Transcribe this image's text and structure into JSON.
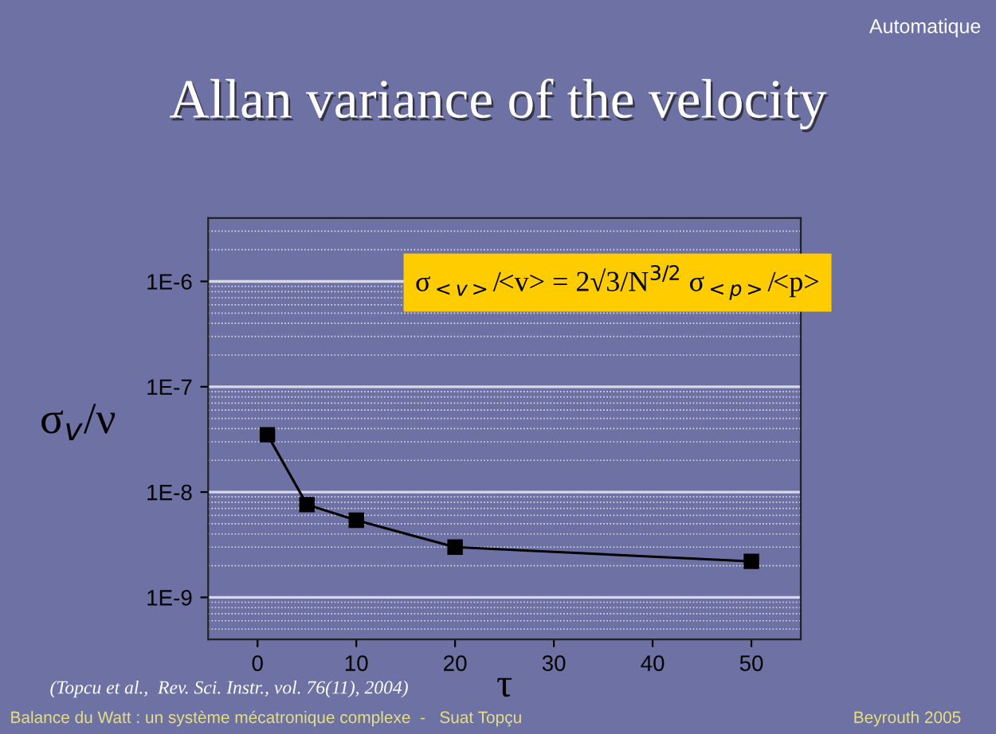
{
  "chart_data": {
    "type": "line",
    "title": "Allan variance of the velocity",
    "xlabel": "τ",
    "ylabel": "σ$_{v}$/ν",
    "x": [
      1,
      5,
      10,
      20,
      50
    ],
    "series": [
      {
        "color": "#000000",
        "values": [
          3.5e-08,
          7.6e-09,
          5.4e-09,
          3e-09,
          2.2e-09
        ]
      }
    ],
    "marker": "square",
    "line_style": "solid",
    "log": "y",
    "grid": "y",
    "legend": false,
    "xlim": [
      -5,
      55
    ],
    "xticks": [
      0,
      10,
      20,
      30,
      40,
      50
    ],
    "ylim": [
      4e-10,
      4e-06
    ],
    "yticks": [
      {
        "value": 1e-09,
        "label": "1E-9"
      },
      {
        "value": 1e-08,
        "label": "1E-8"
      },
      {
        "value": 1e-07,
        "label": "1E-7"
      },
      {
        "value": 1e-06,
        "label": "1E-6"
      }
    ],
    "annotations": [
      "σ$_{<v>}$/<v> = 2√3/N$^{3/2}$ σ$_{<p>}$/<p>",
      "(Topcu et al.,  Rev. Sci. Instr., vol. 76(11), 2004)",
      "Automatique",
      "Balance du Watt : un système mécatronique complexe  -   Suat Topçu",
      "Beyrouth 2005"
    ]
  }
}
